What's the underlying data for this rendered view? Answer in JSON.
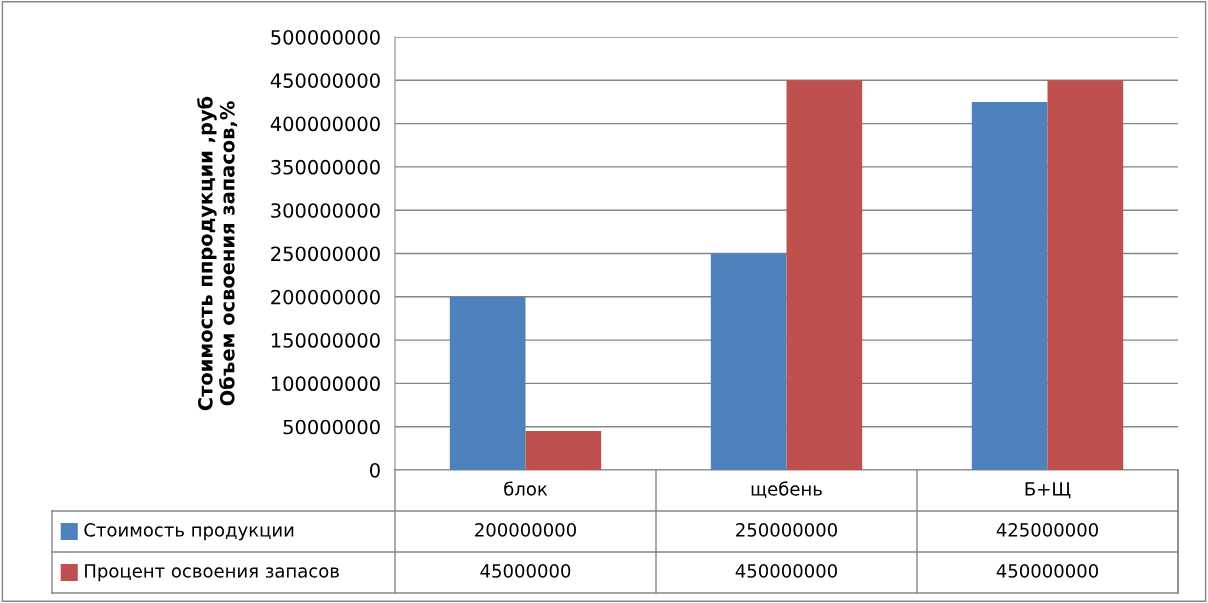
{
  "chart_data": {
    "type": "bar",
    "ylabel": "Стоимость ппродукции ,руб\nОбъем освоения запасов,%",
    "categories": [
      "блок",
      "щебень",
      "Б+Щ"
    ],
    "series": [
      {
        "name": "Стоимость продукции",
        "color": "#4f81bd",
        "values": [
          200000000,
          250000000,
          425000000
        ]
      },
      {
        "name": "Процент освоения запасов",
        "color": "#c0504d",
        "values": [
          45000000,
          450000000,
          450000000
        ]
      }
    ],
    "ylim": [
      0,
      500000000
    ],
    "yticks": [
      0,
      50000000,
      100000000,
      150000000,
      200000000,
      250000000,
      300000000,
      350000000,
      400000000,
      450000000,
      500000000
    ],
    "grid": "y",
    "legend": "bottom",
    "data_labels": true
  }
}
